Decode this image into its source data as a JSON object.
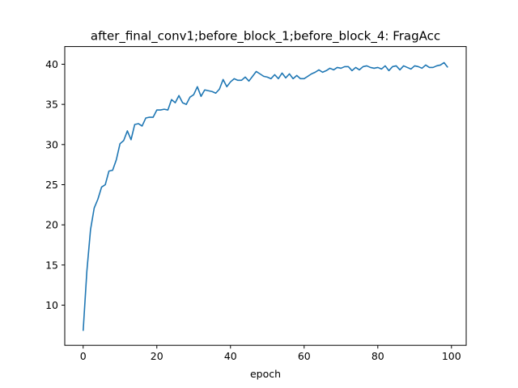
{
  "chart_data": {
    "type": "line",
    "title": "after_final_conv1;before_block_1;before_block_4: FragAcc",
    "xlabel": "epoch",
    "ylabel": "",
    "xlim": [
      -5,
      104
    ],
    "ylim": [
      5.0,
      42.2
    ],
    "xticks": [
      0,
      20,
      40,
      60,
      80,
      100
    ],
    "yticks": [
      10,
      15,
      20,
      25,
      30,
      35,
      40
    ],
    "grid": false,
    "line_color": "#1f77b4",
    "series": [
      {
        "x": [
          0,
          1,
          2,
          3,
          4,
          5,
          6,
          7,
          8,
          9,
          10,
          11,
          12,
          13,
          14,
          15,
          16,
          17,
          18,
          19,
          20,
          21,
          22,
          23,
          24,
          25,
          26,
          27,
          28,
          29,
          30,
          31,
          32,
          33,
          34,
          35,
          36,
          37,
          38,
          39,
          40,
          41,
          42,
          43,
          44,
          45,
          46,
          47,
          48,
          49,
          50,
          51,
          52,
          53,
          54,
          55,
          56,
          57,
          58,
          59,
          60,
          61,
          62,
          63,
          64,
          65,
          66,
          67,
          68,
          69,
          70,
          71,
          72,
          73,
          74,
          75,
          76,
          77,
          78,
          79,
          80,
          81,
          82,
          83,
          84,
          85,
          86,
          87,
          88,
          89,
          90,
          91,
          92,
          93,
          94,
          95,
          96,
          97,
          98,
          99
        ],
        "values": [
          6.8,
          14.2,
          19.4,
          22.1,
          23.2,
          24.7,
          25.0,
          26.7,
          26.8,
          28.1,
          30.1,
          30.5,
          31.7,
          30.6,
          32.5,
          32.6,
          32.3,
          33.3,
          33.4,
          33.4,
          34.3,
          34.3,
          34.4,
          34.3,
          35.6,
          35.2,
          36.1,
          35.2,
          35.0,
          35.9,
          36.2,
          37.2,
          36.0,
          36.8,
          36.7,
          36.6,
          36.4,
          36.9,
          38.1,
          37.2,
          37.8,
          38.2,
          38.0,
          38.0,
          38.4,
          37.9,
          38.5,
          39.1,
          38.8,
          38.5,
          38.4,
          38.2,
          38.7,
          38.2,
          38.9,
          38.3,
          38.8,
          38.2,
          38.6,
          38.2,
          38.2,
          38.5,
          38.8,
          39.0,
          39.3,
          39.0,
          39.2,
          39.5,
          39.3,
          39.6,
          39.5,
          39.7,
          39.7,
          39.2,
          39.6,
          39.3,
          39.7,
          39.8,
          39.6,
          39.5,
          39.6,
          39.4,
          39.8,
          39.2,
          39.7,
          39.8,
          39.3,
          39.8,
          39.6,
          39.4,
          39.8,
          39.7,
          39.5,
          39.9,
          39.6,
          39.6,
          39.8,
          39.9,
          40.2,
          39.6
        ]
      }
    ]
  }
}
